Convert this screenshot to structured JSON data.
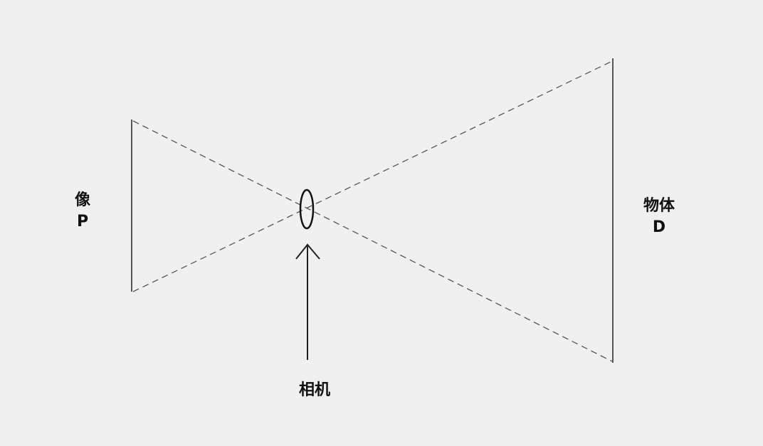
{
  "labels": {
    "image": {
      "name": "像",
      "symbol": "P"
    },
    "object": {
      "name": "物体",
      "symbol": "D"
    },
    "camera": {
      "name": "相机"
    }
  },
  "colors": {
    "background": "#f0f0f0",
    "stroke": "#111111",
    "dashed_ray": "#555555"
  },
  "icons": {
    "lens": "ellipse-lens-icon",
    "pointer": "up-arrow-icon"
  }
}
